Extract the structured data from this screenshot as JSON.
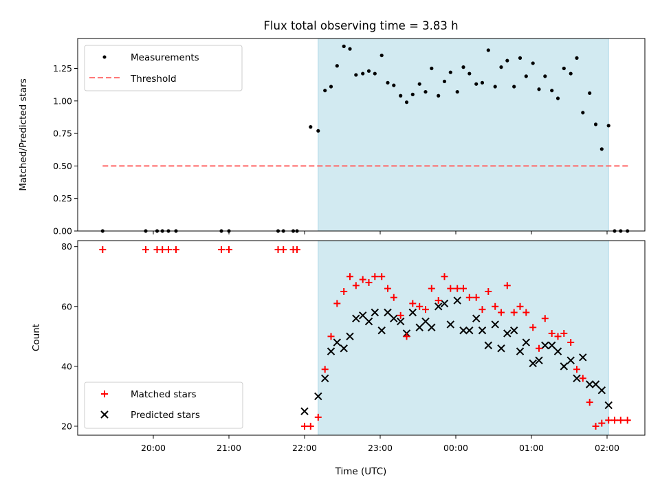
{
  "title": "Flux total observing time = 3.83 h",
  "chart_data": [
    {
      "type": "scatter",
      "panel": "top",
      "title": "Flux total observing time = 3.83 h",
      "xlabel": "",
      "ylabel": "Matched/Predicted stars",
      "ylim": [
        0,
        1.48
      ],
      "yticks": [
        "0.00",
        "0.25",
        "0.50",
        "0.75",
        "1.00",
        "1.25"
      ],
      "xticks": [
        "20:00",
        "21:00",
        "22:00",
        "23:00",
        "00:00",
        "01:00",
        "02:00"
      ],
      "xlim_hours": [
        19.0,
        26.5
      ],
      "shaded_span_hours": [
        22.18,
        26.02
      ],
      "shade_color": "#add8e6",
      "threshold": {
        "name": "Threshold",
        "value": 0.5,
        "x_range_hours": [
          19.33,
          26.28
        ],
        "color": "#ff6666"
      },
      "series": [
        {
          "name": "Measurements",
          "color": "#000000",
          "x_hours": [
            19.33,
            19.9,
            20.05,
            20.12,
            20.2,
            20.3,
            20.9,
            21.0,
            21.65,
            21.72,
            21.85,
            21.9,
            22.08,
            22.18,
            22.27,
            22.35,
            22.43,
            22.52,
            22.6,
            22.68,
            22.77,
            22.85,
            22.93,
            23.02,
            23.1,
            23.18,
            23.27,
            23.35,
            23.43,
            23.52,
            23.6,
            23.68,
            23.77,
            23.85,
            23.93,
            24.02,
            24.1,
            24.18,
            24.27,
            24.35,
            24.43,
            24.52,
            24.6,
            24.68,
            24.77,
            24.85,
            24.93,
            25.02,
            25.1,
            25.18,
            25.27,
            25.35,
            25.43,
            25.52,
            25.6,
            25.68,
            25.77,
            25.85,
            25.93,
            26.02,
            26.1,
            26.18,
            26.27
          ],
          "y": [
            0,
            0,
            0,
            0,
            0,
            0,
            0,
            0,
            0,
            0,
            0,
            0,
            0.8,
            0.77,
            1.08,
            1.11,
            1.27,
            1.42,
            1.4,
            1.2,
            1.21,
            1.23,
            1.21,
            1.35,
            1.14,
            1.12,
            1.04,
            0.99,
            1.05,
            1.13,
            1.07,
            1.25,
            1.04,
            1.15,
            1.22,
            1.07,
            1.26,
            1.21,
            1.13,
            1.14,
            1.39,
            1.11,
            1.26,
            1.31,
            1.11,
            1.33,
            1.19,
            1.29,
            1.09,
            1.19,
            1.08,
            1.02,
            1.25,
            1.21,
            1.33,
            0.91,
            1.06,
            0.82,
            0.63,
            0.81,
            0,
            0,
            0
          ]
        }
      ],
      "legend": {
        "placement": "top-left",
        "entries": [
          "Measurements",
          "Threshold"
        ]
      }
    },
    {
      "type": "scatter",
      "panel": "bottom",
      "xlabel": "Time (UTC)",
      "ylabel": "Count",
      "ylim": [
        17,
        82
      ],
      "yticks": [
        "20",
        "40",
        "60",
        "80"
      ],
      "xticks": [
        "20:00",
        "21:00",
        "22:00",
        "23:00",
        "00:00",
        "01:00",
        "02:00"
      ],
      "xlim_hours": [
        19.0,
        26.5
      ],
      "shaded_span_hours": [
        22.18,
        26.02
      ],
      "series": [
        {
          "name": "Matched stars",
          "marker": "plus",
          "color": "#ff0000",
          "x_hours": [
            19.33,
            19.9,
            20.05,
            20.12,
            20.2,
            20.3,
            20.9,
            21.0,
            21.65,
            21.72,
            21.85,
            21.9,
            22.0,
            22.08,
            22.18,
            22.27,
            22.35,
            22.43,
            22.52,
            22.6,
            22.68,
            22.77,
            22.85,
            22.93,
            23.02,
            23.1,
            23.18,
            23.27,
            23.35,
            23.43,
            23.52,
            23.6,
            23.68,
            23.77,
            23.85,
            23.93,
            24.02,
            24.1,
            24.18,
            24.27,
            24.35,
            24.43,
            24.52,
            24.6,
            24.68,
            24.77,
            24.85,
            24.93,
            25.02,
            25.1,
            25.18,
            25.27,
            25.35,
            25.43,
            25.52,
            25.6,
            25.68,
            25.77,
            25.85,
            25.93,
            26.02,
            26.1,
            26.18,
            26.27
          ],
          "y": [
            79,
            79,
            79,
            79,
            79,
            79,
            79,
            79,
            79,
            79,
            79,
            79,
            20,
            20,
            23,
            39,
            50,
            61,
            65,
            70,
            67,
            69,
            68,
            70,
            70,
            66,
            63,
            57,
            50,
            61,
            60,
            59,
            66,
            62,
            70,
            66,
            66,
            66,
            63,
            63,
            59,
            65,
            60,
            58,
            67,
            58,
            60,
            58,
            53,
            46,
            56,
            51,
            50,
            51,
            48,
            39,
            36,
            28,
            20,
            21,
            22,
            22,
            22,
            22
          ],
          "x_override_note": ""
        },
        {
          "name": "Predicted stars",
          "marker": "x",
          "color": "#000000",
          "x_hours": [
            22.0,
            22.18,
            22.27,
            22.35,
            22.43,
            22.52,
            22.6,
            22.68,
            22.77,
            22.85,
            22.93,
            23.02,
            23.1,
            23.18,
            23.27,
            23.35,
            23.43,
            23.52,
            23.6,
            23.68,
            23.77,
            23.85,
            23.93,
            24.02,
            24.1,
            24.18,
            24.27,
            24.35,
            24.43,
            24.52,
            24.6,
            24.68,
            24.77,
            24.85,
            24.93,
            25.02,
            25.1,
            25.18,
            25.27,
            25.35,
            25.43,
            25.52,
            25.6,
            25.68,
            25.77,
            25.85,
            25.93,
            26.02
          ],
          "y": [
            25,
            30,
            36,
            45,
            48,
            46,
            50,
            56,
            57,
            55,
            58,
            52,
            58,
            56,
            55,
            51,
            58,
            53,
            55,
            53,
            60,
            61,
            54,
            62,
            52,
            52,
            56,
            52,
            47,
            54,
            46,
            51,
            52,
            45,
            48,
            41,
            42,
            47,
            47,
            45,
            40,
            42,
            36,
            43,
            34,
            34,
            32,
            27
          ]
        }
      ],
      "legend": {
        "placement": "bottom-left",
        "entries": [
          "Matched stars",
          "Predicted stars"
        ]
      }
    }
  ]
}
